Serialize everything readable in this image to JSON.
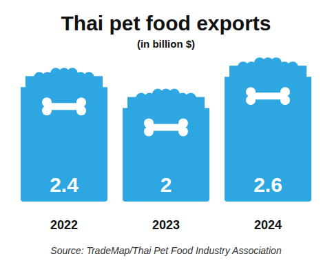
{
  "chart_data": {
    "type": "bar",
    "title": "Thai pet food exports",
    "subtitle": "(in billion $)",
    "categories": [
      "2022",
      "2023",
      "2024"
    ],
    "values": [
      2.4,
      2,
      2.6
    ],
    "color": "#2ea6e2",
    "ylim": [
      0,
      2.8
    ],
    "data_labels": true,
    "tick_labels": "x",
    "source": "Source: TradeMap/Thai Pet Food Industry Association"
  }
}
